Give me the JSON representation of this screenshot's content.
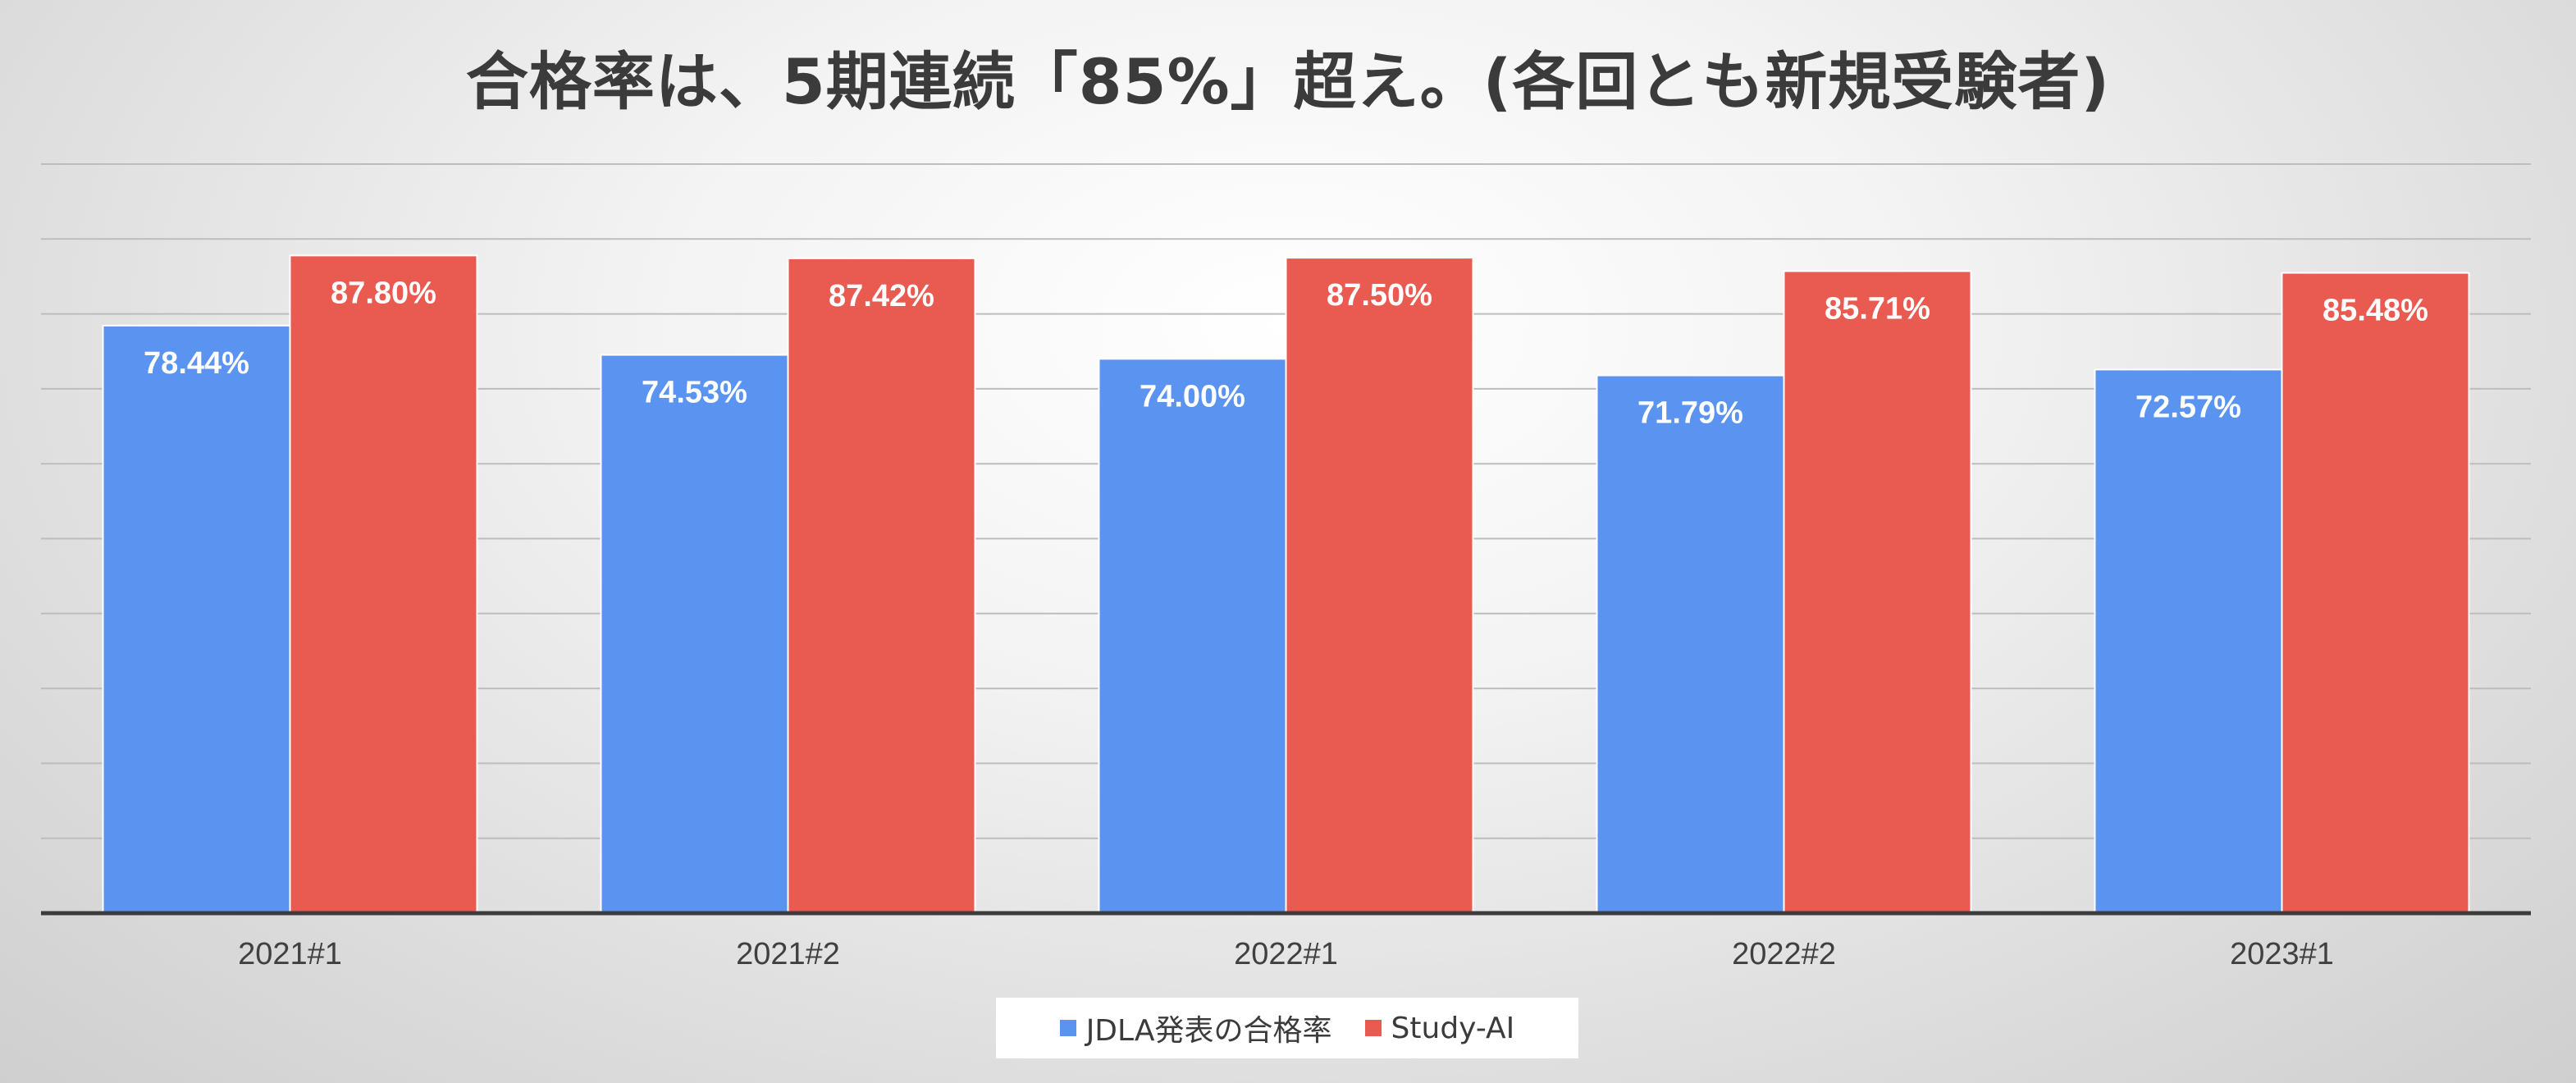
{
  "title": "合格率は、5期連続「85%」超え。(各回とも新規受験者)",
  "colors": {
    "series_1": "#5b93f0",
    "series_2": "#e95a50",
    "gridline": "#bdbdbd",
    "axis": "#3c3c3c"
  },
  "chart_data": {
    "type": "bar",
    "categories": [
      "2021#1",
      "2021#2",
      "2022#1",
      "2022#2",
      "2023#1"
    ],
    "series": [
      {
        "name": "JDLA発表の合格率",
        "values": [
          78.44,
          74.53,
          74.0,
          71.79,
          72.57
        ],
        "labels": [
          "78.44%",
          "74.53%",
          "74.00%",
          "71.79%",
          "72.57%"
        ]
      },
      {
        "name": "Study-AI",
        "values": [
          87.8,
          87.42,
          87.5,
          85.71,
          85.48
        ],
        "labels": [
          "87.80%",
          "87.42%",
          "87.50%",
          "85.71%",
          "85.48%"
        ]
      }
    ],
    "ylim": [
      0,
      100
    ],
    "y_tick_step": 10,
    "y_tick_labels_shown": false,
    "grid": true,
    "legend_position": "bottom"
  }
}
